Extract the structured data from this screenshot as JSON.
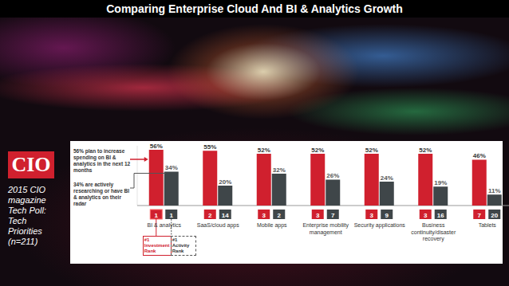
{
  "page": {
    "title": "Comparing Enterprise Cloud And BI & Analytics Growth",
    "logo": "CIO",
    "caption": "2015 CIO magazine Tech Poll: Tech Priorities (n=211)"
  },
  "chart_data": {
    "type": "bar",
    "categories": [
      "BI & analytics",
      "SaaS/cloud apps",
      "Mobile apps",
      "Enterprise mobility management",
      "Security applications",
      "Business continuity/disaster recovery",
      "Tablets"
    ],
    "series": [
      {
        "color": "#d0202e",
        "values": [
          56,
          55,
          52,
          52,
          52,
          52,
          46
        ],
        "value_labels": [
          "56%",
          "55%",
          "52%",
          "52%",
          "52%",
          "52%",
          "46%"
        ],
        "ranks": [
          1,
          2,
          3,
          3,
          3,
          3,
          7
        ]
      },
      {
        "color": "#3f4649",
        "values": [
          34,
          20,
          32,
          26,
          24,
          19,
          11
        ],
        "value_labels": [
          "34%",
          "20%",
          "32%",
          "26%",
          "24%",
          "19%",
          "11%"
        ],
        "ranks": [
          1,
          14,
          2,
          7,
          9,
          16,
          20
        ]
      }
    ],
    "ylim": [
      0,
      60
    ],
    "data_labels": true,
    "tick_labels": "x",
    "annotations": [
      "56% plan to increase spending on BI & analytics in the next 12 months",
      "34% are actively researching or have BI & analytics on their radar",
      "#1 Investment Rank",
      "#1 Activity Rank"
    ]
  }
}
